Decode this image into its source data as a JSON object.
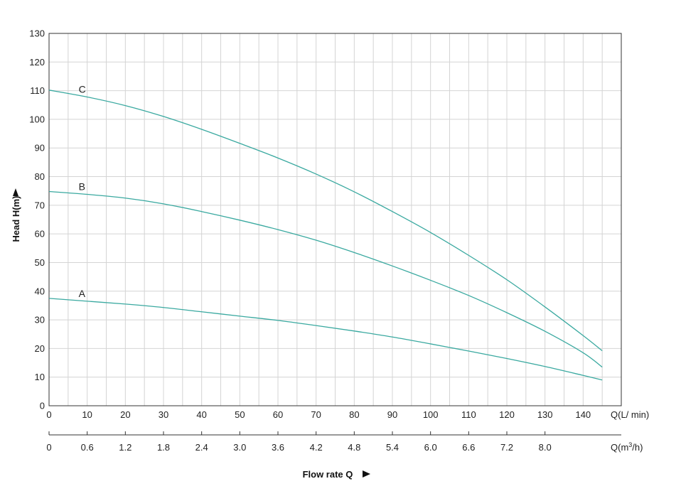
{
  "chart_data": {
    "type": "line",
    "xlabel": "Flow rate Q",
    "ylabel": "Head H(m)",
    "x_unit_primary": "Q(L/ min)",
    "x_unit_secondary": "Q(m³/h)",
    "xlim": [
      0,
      150
    ],
    "ylim": [
      0,
      130
    ],
    "grid": true,
    "x_ticks": [
      0,
      10,
      20,
      30,
      40,
      50,
      60,
      70,
      80,
      90,
      100,
      110,
      120,
      130,
      140
    ],
    "y_ticks": [
      0,
      10,
      20,
      30,
      40,
      50,
      60,
      70,
      80,
      90,
      100,
      110,
      120,
      130
    ],
    "x2_tick_labels": [
      "0",
      "0.6",
      "1.2",
      "1.8",
      "2.4",
      "3.0",
      "3.6",
      "4.2",
      "4.8",
      "5.4",
      "6.0",
      "6.6",
      "7.2",
      "8.0"
    ],
    "series": [
      {
        "name": "A",
        "color": "#3aa9a0",
        "x": [
          0,
          10,
          20,
          30,
          40,
          50,
          60,
          70,
          80,
          90,
          100,
          110,
          120,
          130,
          140,
          145
        ],
        "y": [
          37.5,
          36.5,
          35.5,
          34.3,
          32.8,
          31.3,
          29.8,
          28.0,
          26.1,
          24.0,
          21.6,
          19.1,
          16.5,
          13.7,
          10.6,
          9.0
        ]
      },
      {
        "name": "B",
        "color": "#3aa9a0",
        "x": [
          0,
          10,
          20,
          30,
          40,
          50,
          60,
          70,
          80,
          90,
          100,
          110,
          120,
          130,
          140,
          145
        ],
        "y": [
          74.8,
          73.8,
          72.5,
          70.5,
          67.8,
          64.8,
          61.5,
          57.8,
          53.5,
          48.8,
          43.8,
          38.5,
          32.5,
          26.0,
          18.5,
          13.5
        ]
      },
      {
        "name": "C",
        "color": "#3aa9a0",
        "x": [
          0,
          10,
          20,
          30,
          40,
          50,
          60,
          70,
          80,
          90,
          100,
          110,
          120,
          130,
          140,
          145
        ],
        "y": [
          110.2,
          107.8,
          104.8,
          101.0,
          96.5,
          91.6,
          86.5,
          80.9,
          74.7,
          67.8,
          60.5,
          52.5,
          44.0,
          34.5,
          24.5,
          19.2
        ]
      }
    ]
  }
}
